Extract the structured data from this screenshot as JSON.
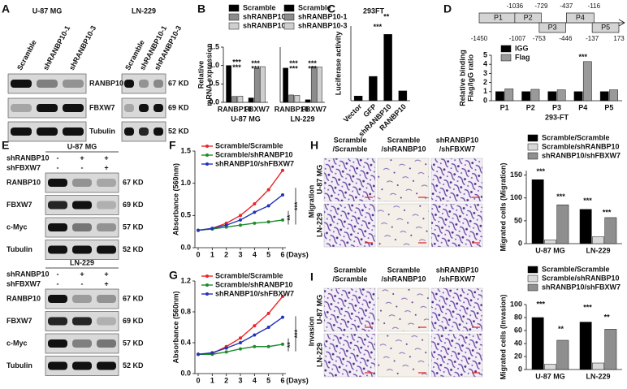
{
  "panel_letters": [
    "A",
    "B",
    "C",
    "D",
    "E",
    "F",
    "G",
    "H",
    "I"
  ],
  "blots_a": {
    "proteins": [
      "RANBP10",
      "FBXW7",
      "Tubulin"
    ],
    "sizes": [
      "67 KD",
      "69 KD",
      "52 KD"
    ],
    "blots": [
      {
        "cell_line": "U-87 MG",
        "lanes": [
          "Scramble",
          "shRANBP10-1",
          "shRANBP10-3"
        ]
      },
      {
        "cell_line": "LN-229",
        "lanes": [
          "Scramble",
          "shRANBP10-1",
          "shRANBP10-3"
        ]
      }
    ]
  },
  "blots_e": [
    {
      "cell_line": "U-87 MG",
      "conditions": [
        {
          "name": "shRANBP10",
          "signs": [
            "-",
            "+",
            "+"
          ]
        },
        {
          "name": "shFBXW7",
          "signs": [
            "-",
            "-",
            "+"
          ]
        }
      ],
      "proteins": [
        "RANBP10",
        "FBXW7",
        "c-Myc",
        "Tubulin"
      ],
      "sizes": [
        "67 KD",
        "69 KD",
        "57 KD",
        "52 KD"
      ]
    },
    {
      "cell_line": "LN-229",
      "conditions": [
        {
          "name": "shRANBP10",
          "signs": [
            "-",
            "+",
            "+"
          ]
        },
        {
          "name": "shFBXW7",
          "signs": [
            "-",
            "-",
            "+"
          ]
        }
      ],
      "proteins": [
        "RANBP10",
        "FBXW7",
        "c-Myc",
        "Tubulin"
      ],
      "sizes": [
        "67 KD",
        "69 KD",
        "57 KD",
        "52 KD"
      ]
    }
  ],
  "promoter": {
    "fragments": [
      {
        "name": "P1",
        "start": -1450,
        "end": -1007
      },
      {
        "name": "P2",
        "start": -1036,
        "end": -729
      },
      {
        "name": "P3",
        "start": -753,
        "end": -446
      },
      {
        "name": "P4",
        "start": -437,
        "end": -116
      },
      {
        "name": "P5",
        "start": -137,
        "end": 173
      }
    ]
  },
  "micrographs": [
    {
      "assay": "Migration",
      "columns": [
        [
          "Scramble",
          "/Scramble"
        ],
        [
          "Scramble",
          "/shRANBP10"
        ],
        [
          "shRANBP10",
          "/shFBXW7"
        ]
      ],
      "rows": [
        "U-87 MG",
        "LN-229"
      ]
    },
    {
      "assay": "Invasion",
      "columns": [
        [
          "Scramble",
          "/Scramble"
        ],
        [
          "Scramble",
          "/shRANBP10"
        ],
        [
          "shRANBP10",
          "/shFBXW7"
        ]
      ],
      "rows": [
        "U-87 MG",
        "LN-229"
      ]
    }
  ],
  "chart_data": [
    {
      "type": "bar",
      "x_label": "U-87 MG",
      "y_label": [
        "Relative",
        "mRNA expression"
      ],
      "categories": [
        "RANBP10",
        "FBXW7"
      ],
      "series": [
        {
          "name": "Scramble",
          "color": "#000000",
          "values": [
            1.0,
            0.12
          ]
        },
        {
          "name": "shRANBP10-1",
          "color": "#8c8c8c",
          "values": [
            0.16,
            0.92
          ]
        },
        {
          "name": "shRANBP10-3",
          "color": "#cfcfcf",
          "values": [
            0.17,
            0.97
          ]
        }
      ],
      "ylim": [
        0,
        1.5
      ],
      "yticks": [
        {
          "value": 0,
          "label": "0.0"
        },
        {
          "value": 0.5,
          "label": "0.5"
        },
        {
          "value": 1,
          "label": "1.0"
        },
        {
          "value": 1.5,
          "label": "1.5"
        }
      ],
      "annotations": [
        "***",
        "***",
        "***",
        "***"
      ]
    },
    {
      "type": "bar",
      "x_label": "LN-229",
      "categories": [
        "RANBP10",
        "FBXW7"
      ],
      "series": [
        {
          "name": "Scramble",
          "color": "#000000",
          "values": [
            0.93,
            0.07
          ]
        },
        {
          "name": "shRANBP10-1",
          "color": "#8c8c8c",
          "values": [
            0.2,
            0.97
          ]
        },
        {
          "name": "shRANBP10-3",
          "color": "#cfcfcf",
          "values": [
            0.19,
            0.96
          ]
        }
      ],
      "ylim": [
        0,
        1.5
      ],
      "annotations": [
        "***",
        "***",
        "***",
        "***"
      ]
    },
    {
      "type": "bar",
      "title": "293FT",
      "y_label": [
        "Luciferase activity"
      ],
      "categories": [
        "Vector",
        "GFP",
        "shRANBP10",
        "RANBP10"
      ],
      "values": [
        1.0,
        5.2,
        14.2,
        2.1
      ],
      "color": "#000000",
      "ylim": [
        0,
        16
      ],
      "annotations": [
        "**",
        "***"
      ]
    },
    {
      "type": "bar",
      "x_label": "293-FT",
      "y_label": [
        "Relative binding",
        "Flag/IgG ratio"
      ],
      "categories": [
        "P1",
        "P2",
        "P3",
        "P4",
        "P5"
      ],
      "series": [
        {
          "name": "IGG",
          "color": "#000000",
          "values": [
            1.0,
            1.0,
            1.0,
            1.0,
            1.0
          ]
        },
        {
          "name": "Flag",
          "color": "#9a9a9a",
          "values": [
            1.3,
            1.25,
            1.2,
            4.3,
            1.2
          ]
        }
      ],
      "ylim": [
        0,
        5
      ],
      "yticks": [
        0,
        1,
        2,
        3,
        4,
        5
      ],
      "annotations": [
        "***"
      ]
    },
    {
      "type": "line",
      "y_label": [
        "Absorbance (560nm)"
      ],
      "x_unit": "(Days)",
      "x": [
        0,
        1,
        2,
        3,
        4,
        5,
        6
      ],
      "series": [
        {
          "name": "Scramble/Scramble",
          "color": "#e8262a",
          "values": [
            0.27,
            0.3,
            0.38,
            0.5,
            0.68,
            0.9,
            1.2
          ]
        },
        {
          "name": "Scramble/shRANBP10",
          "color": "#1f8a2e",
          "values": [
            0.27,
            0.29,
            0.32,
            0.35,
            0.38,
            0.4,
            0.43
          ]
        },
        {
          "name": "shRANBP10/shFBXW7",
          "color": "#2233b8",
          "values": [
            0.27,
            0.3,
            0.35,
            0.43,
            0.55,
            0.65,
            0.82
          ]
        }
      ],
      "xlim": [
        0,
        6
      ],
      "xticks": [
        0,
        1,
        2,
        3,
        4,
        5,
        6
      ],
      "ylim": [
        0,
        1.5
      ],
      "yticks": [
        {
          "value": 0,
          "label": "0.0"
        },
        {
          "value": 0.5,
          "label": "0.5"
        },
        {
          "value": 1,
          "label": "1.0"
        },
        {
          "value": 1.5,
          "label": "1.5"
        }
      ],
      "annotations": [
        "**",
        "***"
      ]
    },
    {
      "type": "line",
      "y_label": [
        "Absorbance (560nm)"
      ],
      "x_unit": "(Days)",
      "x": [
        0,
        1,
        2,
        3,
        4,
        5,
        6
      ],
      "series": [
        {
          "name": "Scramble/Scramble",
          "color": "#e8262a",
          "values": [
            0.25,
            0.26,
            0.35,
            0.46,
            0.62,
            0.78,
            1.0
          ]
        },
        {
          "name": "Scramble/shRANBP10",
          "color": "#1f8a2e",
          "values": [
            0.25,
            0.25,
            0.28,
            0.32,
            0.35,
            0.35,
            0.38
          ]
        },
        {
          "name": "shRANBP10/shFBXW7",
          "color": "#2233b8",
          "values": [
            0.25,
            0.27,
            0.33,
            0.4,
            0.5,
            0.6,
            0.73
          ]
        }
      ],
      "xlim": [
        0,
        6
      ],
      "xticks": [
        0,
        1,
        2,
        3,
        4,
        5,
        6
      ],
      "ylim": [
        0,
        1.2
      ],
      "yticks": [
        {
          "value": 0,
          "label": "0.0"
        },
        {
          "value": 0.4,
          "label": "0.4"
        },
        {
          "value": 0.8,
          "label": "0.8"
        },
        {
          "value": 1.2,
          "label": "1.2"
        }
      ],
      "annotations": [
        "**",
        "***"
      ]
    },
    {
      "type": "bar",
      "y_label": [
        "Migrated cells (Migration)"
      ],
      "categories": [
        "U-87 MG",
        "LN-229"
      ],
      "series": [
        {
          "name": "Scramble/Scramble",
          "color": "#000000",
          "values": [
            140,
            75
          ]
        },
        {
          "name": "Scramble/shRANBP10",
          "color": "#d9d9d9",
          "values": [
            8,
            15
          ]
        },
        {
          "name": "shRANBP10/shFBXW7",
          "color": "#8f8f8f",
          "values": [
            85,
            57
          ]
        }
      ],
      "ylim": [
        0,
        160
      ],
      "yticks": [
        0,
        50,
        100,
        150
      ],
      "annotations": [
        "***",
        "***",
        "***",
        "***"
      ]
    },
    {
      "type": "bar",
      "y_label": [
        "Migrated cells (Invasion)"
      ],
      "categories": [
        "U-87 MG",
        "LN-229"
      ],
      "series": [
        {
          "name": "Scramble/Scramble",
          "color": "#000000",
          "values": [
            80,
            73
          ]
        },
        {
          "name": "Scramble/shRANBP10",
          "color": "#d9d9d9",
          "values": [
            8,
            10
          ]
        },
        {
          "name": "shRANBP10/shFBXW7",
          "color": "#8f8f8f",
          "values": [
            45,
            62
          ]
        }
      ],
      "ylim": [
        0,
        100
      ],
      "yticks": [
        0,
        20,
        40,
        60,
        80,
        100
      ],
      "annotations": [
        "***",
        "**",
        "***",
        "**"
      ]
    }
  ]
}
